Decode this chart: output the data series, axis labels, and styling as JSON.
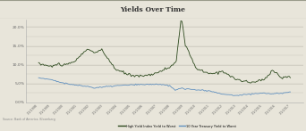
{
  "title": "Yields Over Time",
  "title_bg": "#c8c9b8",
  "title_border": "#9a9b8a",
  "bg_color": "#e8e5da",
  "plot_bg": "#e8e5da",
  "ylim": [
    0.0,
    0.22
  ],
  "ytick_vals": [
    0.0,
    0.05,
    0.1,
    0.15,
    0.2
  ],
  "ytick_labels": [
    "0.0%",
    "5.0%",
    "10.0%",
    "15.0%",
    "20.0%"
  ],
  "ylabel_color": "#555555",
  "grid_color": "#c8c5ba",
  "hy_color": "#2d4a1e",
  "treasury_color": "#6090c0",
  "source_text": "Source: Bank of America, Bloomberg",
  "legend_hy": "High Yield Index Yield to Worst",
  "legend_tr": "10 Year Treasury Yield to Worst",
  "x_labels": [
    "1/1/1998",
    "1/1/1999",
    "1/1/2000",
    "1/1/2001",
    "1/1/2002",
    "1/1/2003",
    "1/1/2004",
    "1/1/2005",
    "1/1/2006",
    "1/1/2007",
    "1/1/2008",
    "1/1/2009",
    "1/1/2010",
    "1/1/2011",
    "1/1/2012",
    "1/1/2013",
    "1/1/2014",
    "1/1/2015",
    "1/1/2016",
    "1/1/2017"
  ]
}
